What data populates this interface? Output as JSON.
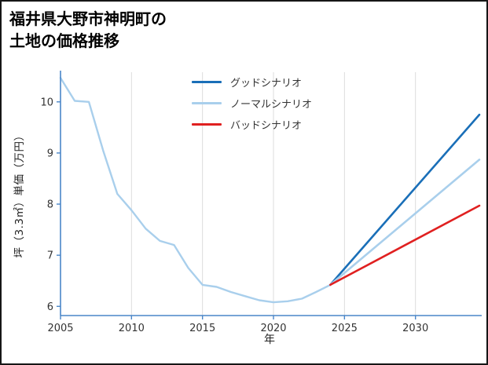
{
  "title": {
    "line1": "福井県大野市神明町の",
    "line2": "土地の価格推移"
  },
  "chart_data": {
    "type": "line",
    "title": "福井県大野市神明町の土地の価格推移",
    "xlabel": "年",
    "ylabel": "坪（3.3㎡）単価（万円）",
    "xlim": [
      2005,
      2034.5
    ],
    "ylim": [
      5.82,
      10.58
    ],
    "x_ticks": [
      2005,
      2010,
      2015,
      2020,
      2025,
      2030
    ],
    "y_ticks": [
      6,
      7,
      8,
      9,
      10
    ],
    "grid": "vertical",
    "grid_color": "#dcdcdc",
    "axis_color": "#4a86c8",
    "tick_label_color": "#333333",
    "legend_position": "top-center-inside",
    "legend": [
      {
        "label": "グッドシナリオ",
        "color": "#1a6fb8"
      },
      {
        "label": "ノーマルシナリオ",
        "color": "#a9cfec"
      },
      {
        "label": "バッドシナリオ",
        "color": "#e02020"
      }
    ],
    "series": [
      {
        "key": "price-history",
        "color": "#a9cfec",
        "width": 2.4,
        "points": [
          [
            2005,
            10.47
          ],
          [
            2006,
            10.02
          ],
          [
            2007,
            10.0
          ],
          [
            2008,
            9.05
          ],
          [
            2009,
            8.2
          ],
          [
            2010,
            7.88
          ],
          [
            2011,
            7.52
          ],
          [
            2012,
            7.28
          ],
          [
            2013,
            7.2
          ],
          [
            2014,
            6.75
          ],
          [
            2015,
            6.42
          ],
          [
            2016,
            6.38
          ],
          [
            2017,
            6.28
          ],
          [
            2018,
            6.2
          ],
          [
            2019,
            6.12
          ],
          [
            2020,
            6.08
          ],
          [
            2021,
            6.1
          ],
          [
            2022,
            6.15
          ],
          [
            2023,
            6.28
          ],
          [
            2024,
            6.42
          ]
        ]
      },
      {
        "key": "good-scenario",
        "color": "#1a6fb8",
        "width": 2.6,
        "points": [
          [
            2024,
            6.42
          ],
          [
            2034.5,
            9.75
          ]
        ]
      },
      {
        "key": "normal-scenario",
        "color": "#a9cfec",
        "width": 2.6,
        "points": [
          [
            2024,
            6.42
          ],
          [
            2034.5,
            8.87
          ]
        ]
      },
      {
        "key": "bad-scenario",
        "color": "#e02020",
        "width": 2.6,
        "points": [
          [
            2024,
            6.42
          ],
          [
            2034.5,
            7.97
          ]
        ]
      }
    ]
  }
}
